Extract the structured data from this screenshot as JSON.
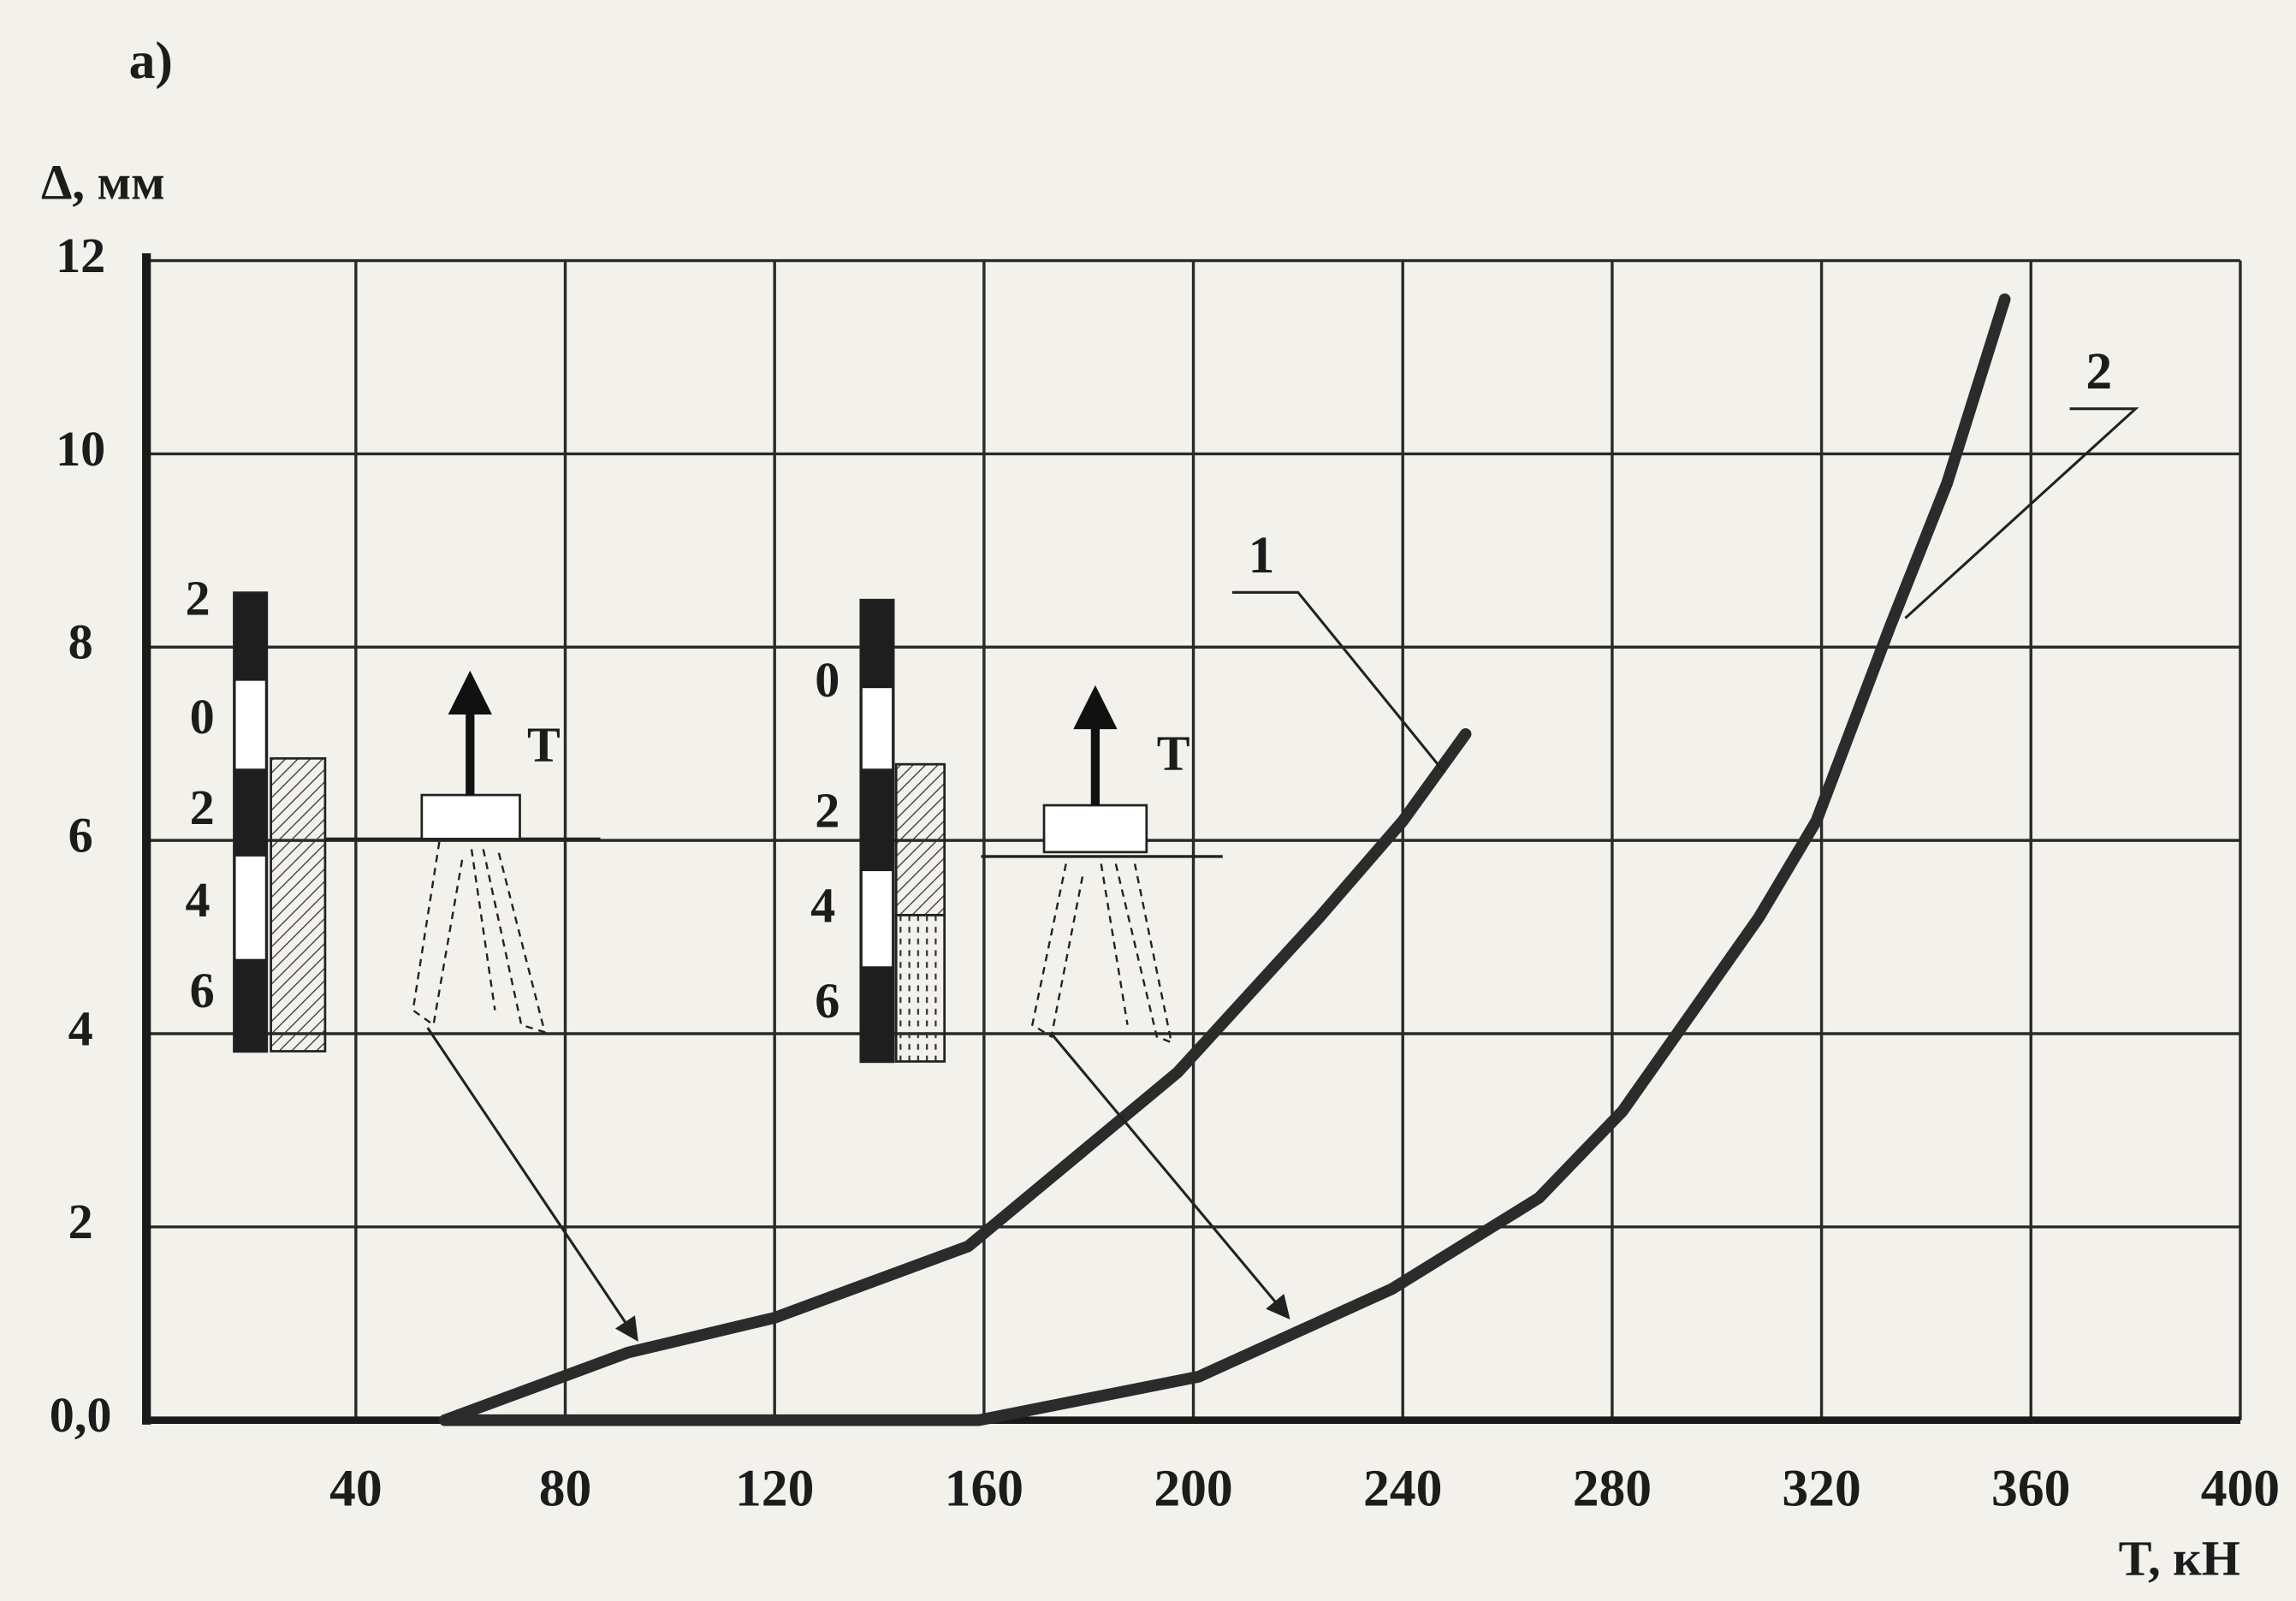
{
  "chart_data": {
    "type": "line",
    "panel_label": "а)",
    "y_label": "Δ, мм",
    "x_label": "T, кН",
    "xlim": [
      0,
      400
    ],
    "xticks": [
      40,
      80,
      120,
      160,
      200,
      240,
      280,
      320,
      360,
      400
    ],
    "ylim": [
      0,
      12
    ],
    "yticks": [
      {
        "value": 0,
        "label": "0,0"
      },
      2,
      4,
      6,
      8,
      10,
      12
    ],
    "grid": true,
    "series": [
      {
        "name": "1",
        "color": "#2b2b2b",
        "x": [
          57,
          92,
          120,
          157,
          197,
          224,
          240,
          252
        ],
        "values": [
          0,
          0.7,
          1.06,
          1.8,
          3.6,
          5.2,
          6.2,
          7.1
        ]
      },
      {
        "name": "2",
        "color": "#2b2b2b",
        "x": [
          57,
          159,
          201,
          238,
          266,
          282,
          308,
          319,
          333,
          344,
          355
        ],
        "values": [
          0,
          0,
          0.45,
          1.36,
          2.3,
          3.2,
          5.2,
          6.2,
          8.2,
          9.7,
          11.6
        ]
      }
    ],
    "insets": [
      {
        "scale": [
          "2",
          "0",
          "2",
          "4",
          "6"
        ],
        "force": "T"
      },
      {
        "scale": [
          "0",
          "2",
          "4",
          "6"
        ],
        "force": "T"
      }
    ]
  }
}
